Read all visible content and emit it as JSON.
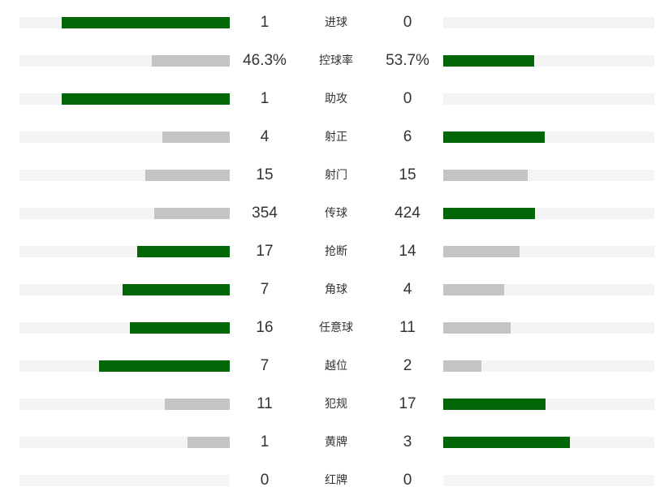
{
  "colors": {
    "leading": "#006608",
    "trailing": "#c4c4c4",
    "track": "#f4f4f4"
  },
  "stats": [
    {
      "label": "进球",
      "home": "1",
      "away": "0",
      "home_fill": 80,
      "away_fill": 0,
      "leader": "home"
    },
    {
      "label": "控球率",
      "home": "46.3%",
      "away": "53.7%",
      "home_fill": 37,
      "away_fill": 43,
      "leader": "away"
    },
    {
      "label": "助攻",
      "home": "1",
      "away": "0",
      "home_fill": 80,
      "away_fill": 0,
      "leader": "home"
    },
    {
      "label": "射正",
      "home": "4",
      "away": "6",
      "home_fill": 32,
      "away_fill": 48,
      "leader": "away"
    },
    {
      "label": "射门",
      "home": "15",
      "away": "15",
      "home_fill": 40,
      "away_fill": 40,
      "leader": "none"
    },
    {
      "label": "传球",
      "home": "354",
      "away": "424",
      "home_fill": 36,
      "away_fill": 43.5,
      "leader": "away"
    },
    {
      "label": "抢断",
      "home": "17",
      "away": "14",
      "home_fill": 44,
      "away_fill": 36,
      "leader": "home"
    },
    {
      "label": "角球",
      "home": "7",
      "away": "4",
      "home_fill": 51,
      "away_fill": 29,
      "leader": "home"
    },
    {
      "label": "任意球",
      "home": "16",
      "away": "11",
      "home_fill": 47.5,
      "away_fill": 32,
      "leader": "home"
    },
    {
      "label": "越位",
      "home": "7",
      "away": "2",
      "home_fill": 62,
      "away_fill": 18,
      "leader": "home"
    },
    {
      "label": "犯规",
      "home": "11",
      "away": "17",
      "home_fill": 31,
      "away_fill": 48.5,
      "leader": "away"
    },
    {
      "label": "黄牌",
      "home": "1",
      "away": "3",
      "home_fill": 20,
      "away_fill": 60,
      "leader": "away"
    },
    {
      "label": "红牌",
      "home": "0",
      "away": "0",
      "home_fill": 0,
      "away_fill": 0,
      "leader": "none"
    }
  ]
}
